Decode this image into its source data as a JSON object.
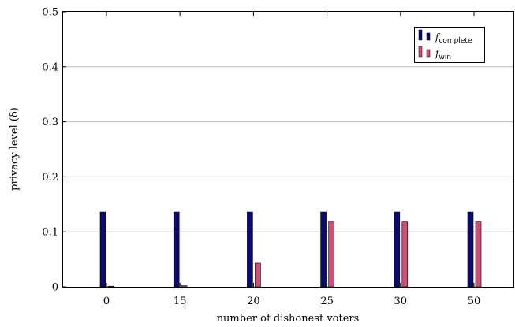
{
  "chart_data": {
    "type": "bar",
    "title": "",
    "xlabel": "number of dishonest voters",
    "ylabel": "privacy level (δ)",
    "categories": [
      "0",
      "15",
      "20",
      "25",
      "30",
      "50"
    ],
    "ylim": [
      0,
      0.5
    ],
    "yticks": [
      "0",
      "0.1",
      "0.2",
      "0.3",
      "0.4",
      "0.5"
    ],
    "grid": "horizontal",
    "legend_position": "top-right",
    "series": [
      {
        "name": "f",
        "subscript": "complete",
        "color": "#0b0b6e",
        "values": [
          0.136,
          0.136,
          0.136,
          0.136,
          0.136,
          0.136
        ]
      },
      {
        "name": "f",
        "subscript": "win",
        "color": "#cf4f74",
        "values": [
          0.0,
          0.002,
          0.043,
          0.118,
          0.118,
          0.118
        ]
      }
    ]
  }
}
